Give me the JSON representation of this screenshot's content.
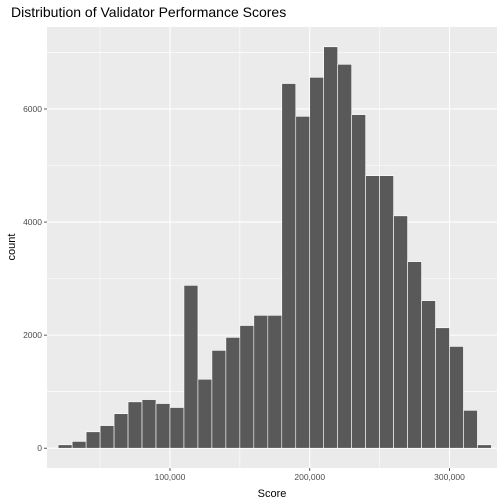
{
  "chart_data": {
    "type": "bar",
    "title": "Distribution of Validator Performance Scores",
    "xlabel": "Score",
    "ylabel": "count",
    "xlim": [
      12000,
      334000
    ],
    "ylim": [
      -350,
      7450
    ],
    "x_ticks": [
      {
        "value": 100000,
        "label": "100,000"
      },
      {
        "value": 200000,
        "label": "200,000"
      },
      {
        "value": 300000,
        "label": "300,000"
      }
    ],
    "y_ticks": [
      {
        "value": 0,
        "label": "0"
      },
      {
        "value": 2000,
        "label": "2000"
      },
      {
        "value": 4000,
        "label": "4000"
      },
      {
        "value": 6000,
        "label": "6000"
      }
    ],
    "bin_width": 10000,
    "bin_centers": [
      25000,
      35000,
      45000,
      55000,
      65000,
      75000,
      85000,
      95000,
      105000,
      115000,
      125000,
      135000,
      145000,
      155000,
      165000,
      175000,
      185000,
      195000,
      205000,
      215000,
      225000,
      235000,
      245000,
      255000,
      265000,
      275000,
      285000,
      295000,
      305000,
      315000,
      325000
    ],
    "values": [
      60,
      120,
      290,
      400,
      610,
      820,
      860,
      790,
      720,
      2880,
      1220,
      1730,
      1960,
      2170,
      2350,
      2350,
      6450,
      5870,
      6560,
      7100,
      6790,
      5900,
      4820,
      4820,
      4110,
      3300,
      2610,
      2130,
      1800,
      670,
      60
    ],
    "bar_fill": "#595959",
    "bar_outline": "#ffffff",
    "panel_background": "#ebebeb",
    "grid": true,
    "grid_color": "#ffffff"
  }
}
